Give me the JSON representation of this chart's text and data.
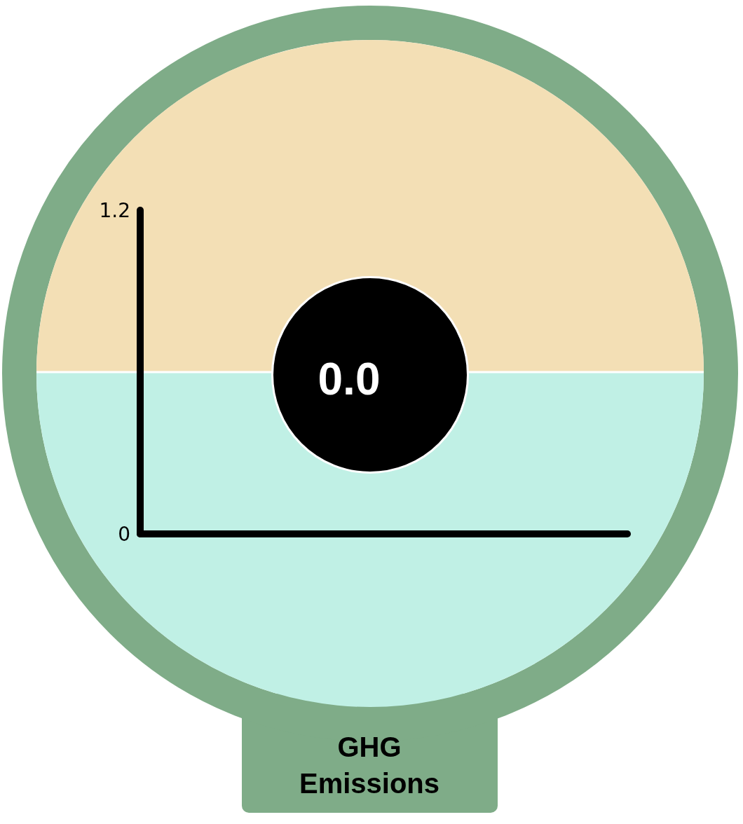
{
  "chart_data": {
    "type": "bar",
    "title": "GHG Emissions",
    "categories": [
      null
    ],
    "values": [
      0.0
    ],
    "value_labels": [
      "0.0"
    ],
    "ylim": [
      0,
      1.2
    ],
    "yticks": [
      0,
      1.2
    ],
    "ref_lines": [
      {
        "axis": "y",
        "value": 0.6,
        "color": "#ffffff"
      }
    ],
    "bands": [
      {
        "axis": "y",
        "from": 0.6,
        "to": 1.2,
        "color": "#f3dfb5"
      },
      {
        "axis": "y",
        "from": 0,
        "to": 0.6,
        "color": "#c0f0e5"
      }
    ]
  }
}
